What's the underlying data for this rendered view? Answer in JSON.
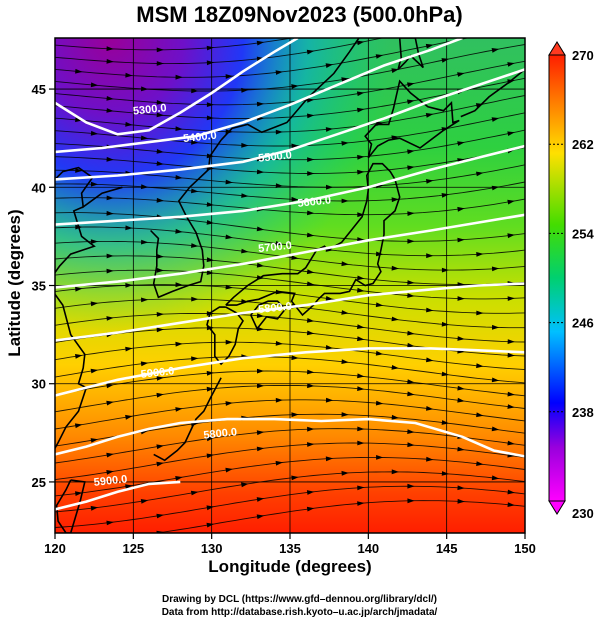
{
  "chart_data": {
    "type": "heatmap",
    "title": "MSM 18Z09Nov2023 (500.0hPa)",
    "xlabel": "Longitude (degrees)",
    "ylabel": "Latitude  (degrees)",
    "xlim": [
      120,
      150
    ],
    "ylim": [
      22.4,
      47.6
    ],
    "x_ticks": [
      120,
      125,
      130,
      135,
      140,
      145,
      150
    ],
    "y_ticks": [
      25,
      30,
      35,
      40,
      45
    ],
    "x_tick_labels": [
      "120",
      "125",
      "130",
      "135",
      "140",
      "145",
      "150"
    ],
    "y_tick_labels": [
      "25",
      "30",
      "35",
      "40",
      "45"
    ],
    "grid": true,
    "colorbar": {
      "min": 230,
      "max": 270,
      "ticks": [
        230,
        238,
        246,
        254,
        262,
        270
      ],
      "tick_labels": [
        "230",
        "238",
        "246",
        "254",
        "262",
        "270"
      ],
      "extend": "both",
      "placement": "right"
    },
    "contours": [
      {
        "label": "5300.0",
        "points": [
          [
            120,
            44.3
          ],
          [
            122,
            43.3
          ],
          [
            124,
            42.7
          ],
          [
            126,
            42.9
          ],
          [
            128,
            43.8
          ],
          [
            130,
            44.8
          ],
          [
            132,
            45.9
          ],
          [
            134,
            46.9
          ],
          [
            135.5,
            47.6
          ]
        ],
        "label_at": [
          125,
          43.7
        ]
      },
      {
        "label": "5400.0",
        "points": [
          [
            120,
            41.8
          ],
          [
            123,
            42.0
          ],
          [
            126,
            42.3
          ],
          [
            129,
            42.6
          ],
          [
            132,
            43.3
          ],
          [
            135,
            44.2
          ],
          [
            138,
            45.2
          ],
          [
            141,
            46.2
          ],
          [
            144,
            47.0
          ],
          [
            146,
            47.6
          ]
        ],
        "label_at": [
          128.2,
          42.3
        ]
      },
      {
        "label": "5500.0",
        "points": [
          [
            120,
            40.4
          ],
          [
            124,
            40.6
          ],
          [
            128,
            40.9
          ],
          [
            132,
            41.3
          ],
          [
            135,
            41.9
          ],
          [
            138,
            42.7
          ],
          [
            141,
            43.5
          ],
          [
            144,
            44.4
          ],
          [
            147,
            45.2
          ],
          [
            150,
            46.0
          ]
        ],
        "label_at": [
          133,
          41.3
        ]
      },
      {
        "label": "5600.0",
        "points": [
          [
            120,
            38.1
          ],
          [
            124,
            38.3
          ],
          [
            128,
            38.5
          ],
          [
            132,
            38.8
          ],
          [
            136,
            39.3
          ],
          [
            140,
            40.0
          ],
          [
            144,
            40.9
          ],
          [
            147,
            41.5
          ],
          [
            150,
            42.1
          ]
        ],
        "label_at": [
          135.5,
          39.0
        ]
      },
      {
        "label": "5700.0",
        "points": [
          [
            120,
            34.9
          ],
          [
            124,
            35.2
          ],
          [
            128,
            35.6
          ],
          [
            132,
            36.1
          ],
          [
            136,
            36.7
          ],
          [
            140,
            37.3
          ],
          [
            144,
            37.8
          ],
          [
            147,
            38.2
          ],
          [
            150,
            38.6
          ]
        ],
        "label_at": [
          133,
          36.7
        ]
      },
      {
        "label": "5800.0",
        "points": [
          [
            120,
            32.2
          ],
          [
            124,
            32.6
          ],
          [
            128,
            33.1
          ],
          [
            132,
            33.6
          ],
          [
            136,
            34.0
          ],
          [
            140,
            34.5
          ],
          [
            144,
            34.8
          ],
          [
            147,
            35.0
          ],
          [
            150,
            35.1
          ]
        ],
        "label_at": [
          133,
          33.6
        ]
      },
      {
        "label": "5900.0",
        "points": [
          [
            120,
            29.4
          ],
          [
            124,
            30.2
          ],
          [
            128,
            30.8
          ],
          [
            132,
            31.3
          ],
          [
            136,
            31.6
          ],
          [
            140,
            31.8
          ],
          [
            144,
            31.8
          ],
          [
            147,
            31.7
          ],
          [
            150,
            31.6
          ]
        ],
        "label_at": [
          125.5,
          30.3
        ]
      },
      {
        "label": "5800.0",
        "points": [
          [
            120,
            26.4
          ],
          [
            122,
            26.8
          ],
          [
            124,
            27.3
          ],
          [
            126,
            27.7
          ],
          [
            128,
            28.0
          ],
          [
            131,
            28.2
          ],
          [
            134,
            28.2
          ],
          [
            137,
            28.1
          ],
          [
            140,
            28.2
          ],
          [
            143,
            28.0
          ],
          [
            146,
            27.3
          ],
          [
            148,
            26.6
          ],
          [
            150,
            26.3
          ]
        ],
        "label_at": [
          129.5,
          27.2
        ]
      },
      {
        "label": "5900.0",
        "points": [
          [
            120,
            23.6
          ],
          [
            122,
            24.0
          ],
          [
            124,
            24.5
          ],
          [
            126,
            24.9
          ],
          [
            128,
            25.0
          ]
        ],
        "label_at": [
          122.5,
          24.8
        ]
      }
    ],
    "coastlines": [
      {
        "name": "korea",
        "points": [
          [
            126.1,
            37.8
          ],
          [
            126.6,
            37.4
          ],
          [
            126.5,
            36.8
          ],
          [
            126.5,
            36.0
          ],
          [
            126.3,
            35.1
          ],
          [
            126.6,
            34.4
          ],
          [
            127.5,
            34.7
          ],
          [
            128.5,
            35.0
          ],
          [
            129.3,
            35.2
          ],
          [
            129.5,
            36.0
          ],
          [
            129.4,
            36.8
          ],
          [
            129.0,
            37.7
          ],
          [
            128.4,
            38.5
          ],
          [
            127.9,
            39.3
          ],
          [
            128.6,
            40.0
          ],
          [
            129.8,
            40.9
          ],
          [
            129.9,
            41.6
          ],
          [
            130.6,
            42.4
          ]
        ]
      },
      {
        "name": "china-east",
        "points": [
          [
            121.8,
            39.0
          ],
          [
            121.2,
            38.8
          ],
          [
            121.7,
            37.5
          ],
          [
            122.5,
            37.0
          ],
          [
            121.0,
            36.6
          ],
          [
            120.3,
            36.0
          ],
          [
            119.5,
            35.1
          ],
          [
            120.5,
            34.0
          ],
          [
            121.0,
            32.5
          ],
          [
            121.9,
            31.5
          ],
          [
            121.8,
            30.8
          ],
          [
            121.5,
            30.0
          ],
          [
            122.0,
            29.8
          ],
          [
            121.5,
            28.6
          ],
          [
            120.7,
            27.8
          ],
          [
            120.2,
            27.0
          ],
          [
            119.7,
            26.3
          ],
          [
            119.5,
            25.5
          ],
          [
            118.6,
            24.6
          ]
        ]
      },
      {
        "name": "liaodong",
        "points": [
          [
            124.3,
            40.0
          ],
          [
            123.0,
            39.7
          ],
          [
            121.8,
            39.0
          ],
          [
            121.7,
            39.7
          ],
          [
            122.4,
            40.5
          ],
          [
            121.5,
            41.0
          ],
          [
            120.5,
            40.8
          ],
          [
            120.0,
            40.4
          ]
        ]
      },
      {
        "name": "taiwan",
        "points": [
          [
            121.0,
            25.1
          ],
          [
            121.9,
            25.0
          ],
          [
            121.6,
            24.0
          ],
          [
            121.0,
            22.4
          ],
          [
            120.7,
            22.4
          ],
          [
            120.2,
            23.0
          ],
          [
            120.1,
            23.8
          ],
          [
            120.7,
            24.6
          ],
          [
            121.0,
            25.1
          ]
        ]
      },
      {
        "name": "kyushu",
        "points": [
          [
            130.9,
            33.9
          ],
          [
            130.5,
            33.9
          ],
          [
            129.9,
            33.6
          ],
          [
            129.7,
            33.0
          ],
          [
            130.2,
            32.5
          ],
          [
            130.2,
            31.4
          ],
          [
            130.6,
            31.0
          ],
          [
            131.1,
            31.4
          ],
          [
            131.5,
            32.0
          ],
          [
            131.7,
            32.8
          ],
          [
            132.0,
            33.2
          ],
          [
            131.6,
            33.6
          ],
          [
            130.9,
            33.9
          ]
        ]
      },
      {
        "name": "shikoku",
        "points": [
          [
            132.5,
            33.5
          ],
          [
            132.9,
            32.8
          ],
          [
            133.5,
            33.4
          ],
          [
            134.2,
            33.3
          ],
          [
            134.7,
            33.8
          ],
          [
            134.2,
            34.2
          ],
          [
            133.6,
            34.2
          ],
          [
            133.0,
            34.0
          ],
          [
            132.5,
            33.5
          ]
        ]
      },
      {
        "name": "honshu",
        "points": [
          [
            130.9,
            34.0
          ],
          [
            131.4,
            34.4
          ],
          [
            132.3,
            35.0
          ],
          [
            133.3,
            35.5
          ],
          [
            134.5,
            35.6
          ],
          [
            135.5,
            35.6
          ],
          [
            136.0,
            35.9
          ],
          [
            136.7,
            36.8
          ],
          [
            137.2,
            37.0
          ],
          [
            137.4,
            36.8
          ],
          [
            138.3,
            37.2
          ],
          [
            139.0,
            37.9
          ],
          [
            139.6,
            38.5
          ],
          [
            139.9,
            39.3
          ],
          [
            140.0,
            39.9
          ],
          [
            139.9,
            40.6
          ],
          [
            140.3,
            41.2
          ],
          [
            140.9,
            41.2
          ],
          [
            141.4,
            40.8
          ],
          [
            141.7,
            40.4
          ],
          [
            142.0,
            39.5
          ],
          [
            141.7,
            38.8
          ],
          [
            141.0,
            38.3
          ],
          [
            141.0,
            37.6
          ],
          [
            140.8,
            36.8
          ],
          [
            140.6,
            36.1
          ],
          [
            140.8,
            35.7
          ],
          [
            140.3,
            35.1
          ],
          [
            139.8,
            35.0
          ],
          [
            139.2,
            35.3
          ],
          [
            138.8,
            34.7
          ],
          [
            138.2,
            34.6
          ],
          [
            137.2,
            34.6
          ],
          [
            136.8,
            34.3
          ],
          [
            136.5,
            34.0
          ],
          [
            135.8,
            33.5
          ],
          [
            135.1,
            34.2
          ],
          [
            135.3,
            34.6
          ],
          [
            134.2,
            34.7
          ],
          [
            133.0,
            34.3
          ],
          [
            132.3,
            34.2
          ],
          [
            131.6,
            34.0
          ],
          [
            130.9,
            34.0
          ]
        ]
      },
      {
        "name": "hokkaido",
        "points": [
          [
            140.0,
            41.5
          ],
          [
            140.2,
            42.2
          ],
          [
            139.8,
            42.6
          ],
          [
            140.5,
            43.2
          ],
          [
            141.3,
            43.2
          ],
          [
            141.6,
            44.0
          ],
          [
            141.8,
            44.7
          ],
          [
            142.0,
            45.4
          ],
          [
            142.7,
            44.8
          ],
          [
            143.8,
            44.1
          ],
          [
            144.8,
            43.9
          ],
          [
            145.3,
            44.3
          ],
          [
            145.4,
            43.3
          ],
          [
            145.8,
            43.4
          ],
          [
            144.8,
            42.9
          ],
          [
            143.3,
            42.0
          ],
          [
            142.0,
            42.5
          ],
          [
            141.3,
            42.4
          ],
          [
            140.6,
            42.1
          ],
          [
            140.0,
            41.5
          ]
        ]
      },
      {
        "name": "sakhalin",
        "points": [
          [
            141.9,
            46.0
          ],
          [
            142.1,
            46.6
          ],
          [
            142.0,
            47.6
          ],
          [
            143.0,
            47.6
          ],
          [
            143.2,
            46.8
          ],
          [
            143.5,
            46.1
          ],
          [
            142.7,
            46.7
          ],
          [
            142.4,
            46.4
          ],
          [
            141.9,
            46.0
          ]
        ]
      },
      {
        "name": "russia-coast",
        "points": [
          [
            130.6,
            42.4
          ],
          [
            131.3,
            43.0
          ],
          [
            132.3,
            43.2
          ],
          [
            133.2,
            42.8
          ],
          [
            134.8,
            43.3
          ],
          [
            136.2,
            44.6
          ],
          [
            137.8,
            45.8
          ],
          [
            138.8,
            46.9
          ],
          [
            139.4,
            47.6
          ]
        ]
      },
      {
        "name": "kuril",
        "points": [
          [
            145.9,
            43.6
          ],
          [
            146.8,
            43.9
          ],
          [
            147.7,
            44.6
          ],
          [
            148.9,
            45.3
          ],
          [
            150.0,
            46.0
          ]
        ]
      },
      {
        "name": "ryukyu",
        "points": [
          [
            126.3,
            26.4
          ],
          [
            127.0,
            26.1
          ],
          [
            127.8,
            26.6
          ],
          [
            128.3,
            27.0
          ],
          [
            129.0,
            28.2
          ],
          [
            129.5,
            28.6
          ],
          [
            130.0,
            29.4
          ],
          [
            130.6,
            30.3
          ]
        ]
      }
    ]
  }
}
